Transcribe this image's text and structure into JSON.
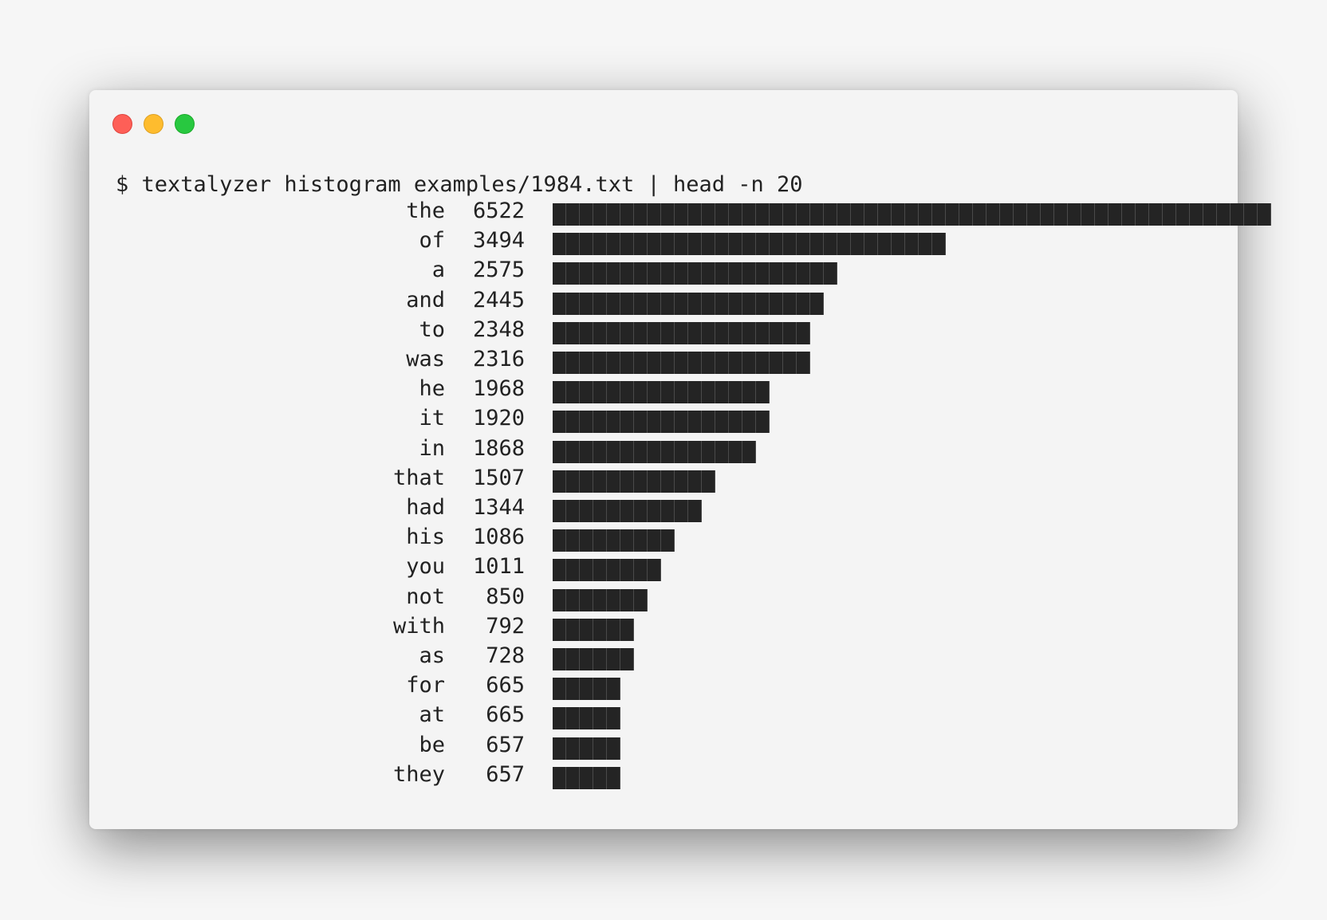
{
  "window": {
    "buttons": [
      {
        "name": "close-button",
        "color": "#fe5f57",
        "border": "#e0443e"
      },
      {
        "name": "minimize-button",
        "color": "#febc2e",
        "border": "#dea123"
      },
      {
        "name": "zoom-button",
        "color": "#28c840",
        "border": "#1aab29"
      }
    ]
  },
  "terminal": {
    "prompt": "$",
    "command": "textalyzer histogram examples/1984.txt | head -n 20"
  },
  "chart_data": {
    "type": "bar",
    "orientation": "horizontal",
    "categories": [
      "the",
      "of",
      "a",
      "and",
      "to",
      "was",
      "he",
      "it",
      "in",
      "that",
      "had",
      "his",
      "you",
      "not",
      "with",
      "as",
      "for",
      "at",
      "be",
      "they"
    ],
    "values": [
      6522,
      3494,
      2575,
      2445,
      2348,
      2316,
      1968,
      1920,
      1868,
      1507,
      1344,
      1086,
      1011,
      850,
      792,
      728,
      665,
      665,
      657,
      657
    ],
    "bar_color": "#242424"
  }
}
